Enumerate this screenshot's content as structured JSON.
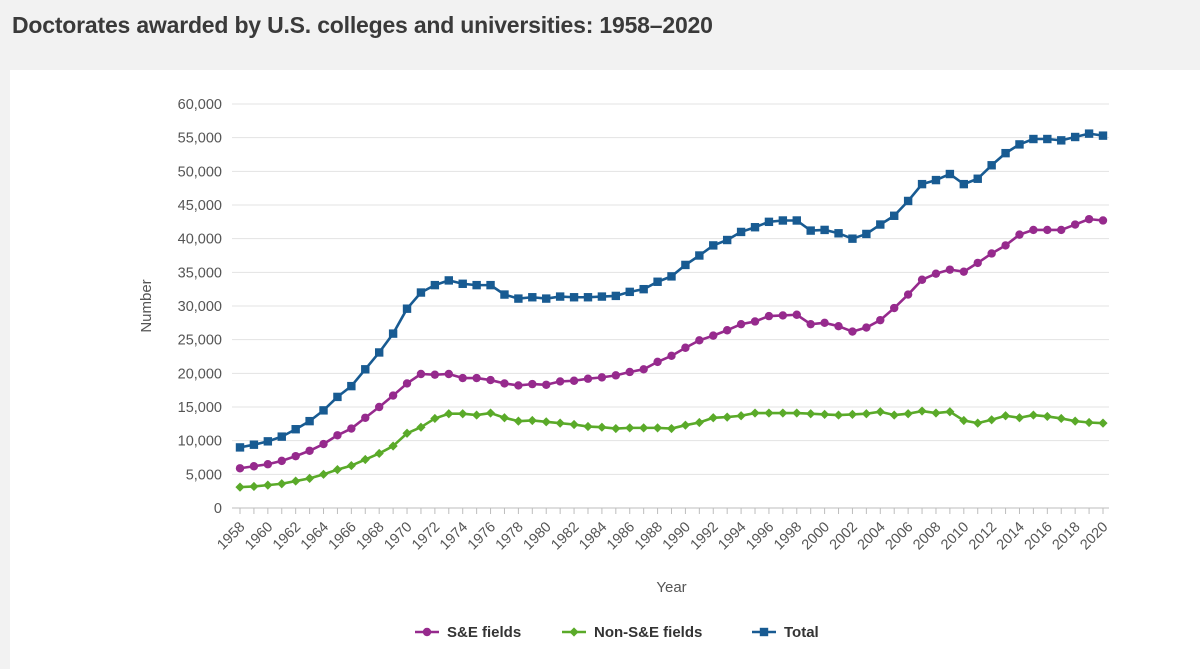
{
  "page": {
    "title": "Doctorates awarded by U.S. colleges and universities: 1958–2020"
  },
  "chart_data": {
    "type": "line",
    "title": "Doctorates awarded by U.S. colleges and universities: 1958–2020",
    "xlabel": "Year",
    "ylabel": "Number",
    "x": [
      1958,
      1959,
      1960,
      1961,
      1962,
      1963,
      1964,
      1965,
      1966,
      1967,
      1968,
      1969,
      1970,
      1971,
      1972,
      1973,
      1974,
      1975,
      1976,
      1977,
      1978,
      1979,
      1980,
      1981,
      1982,
      1983,
      1984,
      1985,
      1986,
      1987,
      1988,
      1989,
      1990,
      1991,
      1992,
      1993,
      1994,
      1995,
      1996,
      1997,
      1998,
      1999,
      2000,
      2001,
      2002,
      2003,
      2004,
      2005,
      2006,
      2007,
      2008,
      2009,
      2010,
      2011,
      2012,
      2013,
      2014,
      2015,
      2016,
      2017,
      2018,
      2019,
      2020
    ],
    "x_tick_labels": [
      "1958",
      "1960",
      "1962",
      "1964",
      "1966",
      "1968",
      "1970",
      "1972",
      "1974",
      "1976",
      "1978",
      "1980",
      "1982",
      "1984",
      "1986",
      "1988",
      "1990",
      "1992",
      "1994",
      "1996",
      "1998",
      "2000",
      "2002",
      "2004",
      "2006",
      "2008",
      "2010",
      "2012",
      "2014",
      "2016",
      "2018",
      "2020"
    ],
    "ylim": [
      0,
      60000
    ],
    "y_ticks": [
      0,
      5000,
      10000,
      15000,
      20000,
      25000,
      30000,
      35000,
      40000,
      45000,
      50000,
      55000,
      60000
    ],
    "y_tick_labels": [
      "0",
      "5,000",
      "10,000",
      "15,000",
      "20,000",
      "25,000",
      "30,000",
      "35,000",
      "40,000",
      "45,000",
      "50,000",
      "55,000",
      "60,000"
    ],
    "grid": "horizontal",
    "legend_position": "bottom-center",
    "series": [
      {
        "name": "S&E fields",
        "color": "#962a8d",
        "marker": "circle",
        "values": [
          5900,
          6200,
          6500,
          7000,
          7700,
          8500,
          9500,
          10800,
          11800,
          13400,
          15000,
          16700,
          18500,
          19900,
          19800,
          19900,
          19300,
          19300,
          19000,
          18500,
          18200,
          18400,
          18300,
          18800,
          18900,
          19200,
          19400,
          19700,
          20200,
          20600,
          21700,
          22600,
          23800,
          24900,
          25600,
          26400,
          27300,
          27700,
          28500,
          28600,
          28700,
          27300,
          27500,
          27000,
          26200,
          26800,
          27900,
          29700,
          31700,
          33900,
          34800,
          35400,
          35100,
          36400,
          37800,
          39000,
          40600,
          41300,
          41300,
          41300,
          42100,
          42900,
          42700
        ]
      },
      {
        "name": "Non-S&E fields",
        "color": "#5aaa29",
        "marker": "diamond",
        "values": [
          3100,
          3200,
          3400,
          3600,
          4000,
          4400,
          5000,
          5700,
          6300,
          7200,
          8100,
          9200,
          11100,
          12000,
          13300,
          14000,
          14000,
          13800,
          14100,
          13400,
          12900,
          13000,
          12800,
          12600,
          12400,
          12100,
          12000,
          11800,
          11900,
          11900,
          11900,
          11800,
          12300,
          12700,
          13400,
          13500,
          13700,
          14100,
          14100,
          14100,
          14100,
          14000,
          13900,
          13800,
          13900,
          14000,
          14300,
          13800,
          14000,
          14400,
          14100,
          14300,
          13000,
          12600,
          13100,
          13700,
          13400,
          13800,
          13600,
          13300,
          12900,
          12700,
          12600
        ]
      },
      {
        "name": "Total",
        "color": "#185b92",
        "marker": "square",
        "values": [
          9000,
          9400,
          9900,
          10600,
          11700,
          12900,
          14500,
          16500,
          18100,
          20600,
          23100,
          25900,
          29600,
          32000,
          33100,
          33800,
          33300,
          33100,
          33100,
          31700,
          31100,
          31300,
          31100,
          31400,
          31300,
          31300,
          31400,
          31500,
          32100,
          32500,
          33600,
          34400,
          36100,
          37500,
          39000,
          39800,
          41000,
          41700,
          42500,
          42700,
          42700,
          41200,
          41300,
          40800,
          40000,
          40700,
          42100,
          43400,
          45600,
          48100,
          48700,
          49600,
          48100,
          48900,
          50900,
          52700,
          54000,
          54800,
          54800,
          54600,
          55100,
          55600,
          55300
        ]
      }
    ]
  }
}
